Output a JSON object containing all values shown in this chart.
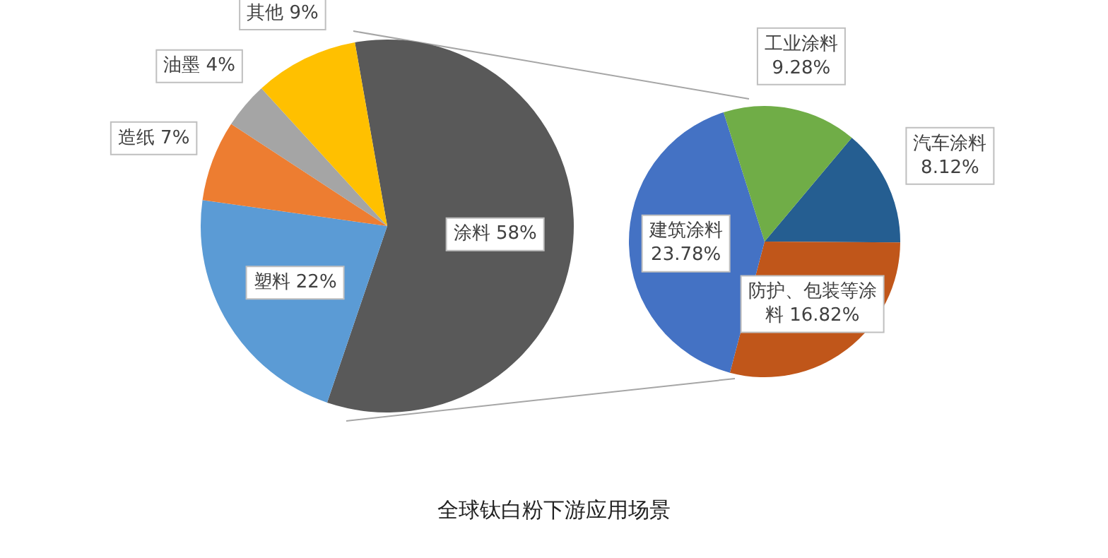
{
  "chart_data": [
    {
      "type": "pie",
      "title": "全球钛白粉下游应用场景",
      "categories": [
        "涂料",
        "塑料",
        "造纸",
        "油墨",
        "其他"
      ],
      "values": [
        58,
        22,
        7,
        4,
        9
      ],
      "value_labels": [
        "58%",
        "22%",
        "7%",
        "4%",
        "9%"
      ],
      "colors": [
        "#595959",
        "#5b9bd5",
        "#ed7d31",
        "#a5a5a5",
        "#ffc000"
      ],
      "legend": false
    },
    {
      "type": "pie",
      "categories": [
        "汽车涂料",
        "防护、包装等涂料",
        "建筑涂料",
        "工业涂料"
      ],
      "values": [
        8.12,
        16.82,
        23.78,
        9.28
      ],
      "value_labels": [
        "8.12%",
        "16.82%",
        "23.78%",
        "9.28%"
      ],
      "colors": [
        "#255e91",
        "#c0561a",
        "#4472c4",
        "#70ad47"
      ],
      "legend": false
    }
  ]
}
